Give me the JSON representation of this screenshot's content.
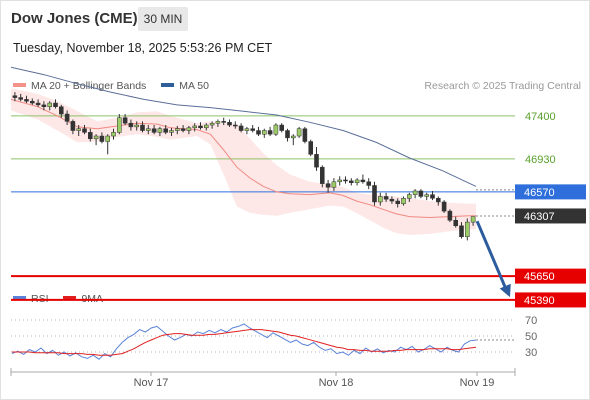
{
  "header": {
    "title": "Dow Jones (CME)",
    "timeframe": "30 MIN",
    "datetime": "Tuesday, November 18, 2025 5:53:26 PM CET",
    "credit": "Research © 2025 Trading Central"
  },
  "legend_main": [
    {
      "label": "MA 20 + Bollinger Bands",
      "color": "#f4928a"
    },
    {
      "label": "MA 50",
      "color": "#2f5f99"
    }
  ],
  "legend_rsi": [
    {
      "label": "RSI",
      "color": "#5a82d8"
    },
    {
      "label": "9MA",
      "color": "#e02020"
    }
  ],
  "chart_data": [
    {
      "type": "candlestick",
      "x_dates": [
        "Nov 17",
        "Nov 18",
        "Nov 19"
      ],
      "ylim": [
        45280,
        47770
      ],
      "levels": [
        {
          "value": 47400,
          "label": "47400",
          "style": "resistance",
          "color": "#8cc26a"
        },
        {
          "value": 46930,
          "label": "46930",
          "style": "resistance",
          "color": "#8cc26a"
        },
        {
          "value": 46570,
          "label": "46570",
          "style": "pivot",
          "color": "#2e6fdb"
        },
        {
          "value": 45650,
          "label": "45650",
          "style": "support",
          "color": "#e60000"
        },
        {
          "value": 45390,
          "label": "45390",
          "style": "support",
          "color": "#e60000"
        }
      ],
      "last_price": {
        "value": 46307,
        "label": "46307"
      },
      "ma50_points": [
        [
          0,
          47930
        ],
        [
          10,
          47850
        ],
        [
          20,
          47750
        ],
        [
          30,
          47660
        ],
        [
          40,
          47580
        ],
        [
          50,
          47520
        ],
        [
          60,
          47490
        ],
        [
          70,
          47450
        ],
        [
          80,
          47410
        ],
        [
          90,
          47330
        ],
        [
          100,
          47240
        ],
        [
          110,
          47110
        ],
        [
          120,
          46940
        ],
        [
          130,
          46800
        ],
        [
          140,
          46630
        ]
      ],
      "ma20_points": [
        [
          0,
          47580
        ],
        [
          8,
          47500
        ],
        [
          14,
          47400
        ],
        [
          20,
          47280
        ],
        [
          26,
          47260
        ],
        [
          32,
          47290
        ],
        [
          38,
          47320
        ],
        [
          44,
          47310
        ],
        [
          48,
          47270
        ],
        [
          52,
          47260
        ],
        [
          56,
          47250
        ],
        [
          60,
          47200
        ],
        [
          64,
          47030
        ],
        [
          68,
          46840
        ],
        [
          72,
          46720
        ],
        [
          76,
          46630
        ],
        [
          80,
          46570
        ],
        [
          84,
          46550
        ],
        [
          90,
          46540
        ],
        [
          96,
          46560
        ],
        [
          100,
          46530
        ],
        [
          104,
          46470
        ],
        [
          108,
          46430
        ],
        [
          112,
          46380
        ],
        [
          116,
          46330
        ],
        [
          120,
          46300
        ],
        [
          126,
          46290
        ],
        [
          132,
          46300
        ],
        [
          138,
          46310
        ],
        [
          140,
          46310
        ]
      ],
      "bb_upper": [
        [
          0,
          47700
        ],
        [
          8,
          47640
        ],
        [
          14,
          47560
        ],
        [
          20,
          47450
        ],
        [
          26,
          47340
        ],
        [
          32,
          47380
        ],
        [
          38,
          47440
        ],
        [
          44,
          47450
        ],
        [
          48,
          47400
        ],
        [
          52,
          47360
        ],
        [
          56,
          47320
        ],
        [
          60,
          47340
        ],
        [
          64,
          47330
        ],
        [
          68,
          47310
        ],
        [
          72,
          47150
        ],
        [
          76,
          46990
        ],
        [
          80,
          46860
        ],
        [
          84,
          46760
        ],
        [
          90,
          46680
        ],
        [
          96,
          46650
        ],
        [
          100,
          46620
        ],
        [
          104,
          46560
        ],
        [
          108,
          46540
        ],
        [
          112,
          46530
        ],
        [
          116,
          46520
        ],
        [
          120,
          46500
        ],
        [
          126,
          46470
        ],
        [
          132,
          46450
        ],
        [
          138,
          46440
        ],
        [
          140,
          46440
        ]
      ],
      "bb_lower": [
        [
          0,
          47460
        ],
        [
          8,
          47360
        ],
        [
          14,
          47240
        ],
        [
          20,
          47110
        ],
        [
          26,
          47120
        ],
        [
          32,
          47170
        ],
        [
          38,
          47200
        ],
        [
          44,
          47170
        ],
        [
          48,
          47140
        ],
        [
          52,
          47160
        ],
        [
          56,
          47180
        ],
        [
          60,
          47090
        ],
        [
          64,
          46760
        ],
        [
          68,
          46410
        ],
        [
          72,
          46340
        ],
        [
          76,
          46320
        ],
        [
          80,
          46310
        ],
        [
          84,
          46340
        ],
        [
          90,
          46380
        ],
        [
          96,
          46420
        ],
        [
          100,
          46410
        ],
        [
          104,
          46340
        ],
        [
          108,
          46260
        ],
        [
          112,
          46180
        ],
        [
          116,
          46120
        ],
        [
          120,
          46100
        ],
        [
          126,
          46110
        ],
        [
          132,
          46140
        ],
        [
          138,
          46160
        ],
        [
          140,
          46160
        ]
      ],
      "candles_ohlc": [
        [
          47620,
          47660,
          47560,
          47600
        ],
        [
          47600,
          47640,
          47560,
          47580
        ],
        [
          47580,
          47620,
          47540,
          47560
        ],
        [
          47560,
          47590,
          47520,
          47540
        ],
        [
          47540,
          47580,
          47500,
          47520
        ],
        [
          47520,
          47560,
          47460,
          47500
        ],
        [
          47500,
          47560,
          47460,
          47540
        ],
        [
          47540,
          47580,
          47480,
          47500
        ],
        [
          47500,
          47520,
          47380,
          47420
        ],
        [
          47420,
          47460,
          47300,
          47340
        ],
        [
          47340,
          47360,
          47200,
          47240
        ],
        [
          47240,
          47300,
          47180,
          47260
        ],
        [
          47260,
          47300,
          47200,
          47220
        ],
        [
          47220,
          47260,
          47120,
          47150
        ],
        [
          47150,
          47200,
          47080,
          47180
        ],
        [
          47180,
          47220,
          47100,
          47120
        ],
        [
          47120,
          47200,
          46980,
          47180
        ],
        [
          47180,
          47260,
          47140,
          47220
        ],
        [
          47220,
          47420,
          47200,
          47380
        ],
        [
          47380,
          47420,
          47300,
          47320
        ],
        [
          47320,
          47360,
          47240,
          47280
        ],
        [
          47280,
          47340,
          47240,
          47300
        ],
        [
          47300,
          47340,
          47220,
          47240
        ],
        [
          47240,
          47300,
          47200,
          47260
        ],
        [
          47260,
          47300,
          47200,
          47220
        ],
        [
          47220,
          47280,
          47180,
          47260
        ],
        [
          47260,
          47300,
          47200,
          47220
        ],
        [
          47220,
          47270,
          47180,
          47240
        ],
        [
          47240,
          47290,
          47200,
          47260
        ],
        [
          47260,
          47300,
          47220,
          47240
        ],
        [
          47240,
          47290,
          47200,
          47270
        ],
        [
          47270,
          47320,
          47230,
          47290
        ],
        [
          47290,
          47330,
          47250,
          47270
        ],
        [
          47270,
          47320,
          47240,
          47300
        ],
        [
          47300,
          47340,
          47260,
          47320
        ],
        [
          47320,
          47360,
          47280,
          47340
        ],
        [
          47340,
          47380,
          47300,
          47330
        ],
        [
          47330,
          47360,
          47280,
          47300
        ],
        [
          47300,
          47340,
          47260,
          47290
        ],
        [
          47290,
          47320,
          47220,
          47240
        ],
        [
          47240,
          47280,
          47200,
          47260
        ],
        [
          47260,
          47300,
          47220,
          47240
        ],
        [
          47240,
          47280,
          47180,
          47200
        ],
        [
          47200,
          47260,
          47160,
          47240
        ],
        [
          47240,
          47280,
          47180,
          47200
        ],
        [
          47200,
          47320,
          47180,
          47300
        ],
        [
          47300,
          47320,
          47220,
          47240
        ],
        [
          47240,
          47260,
          47120,
          47160
        ],
        [
          47160,
          47200,
          47080,
          47180
        ],
        [
          47180,
          47280,
          47160,
          47260
        ],
        [
          47260,
          47280,
          47100,
          47120
        ],
        [
          47120,
          47140,
          46960,
          46980
        ],
        [
          46980,
          47060,
          46800,
          46840
        ],
        [
          46840,
          46860,
          46620,
          46660
        ],
        [
          46660,
          46700,
          46560,
          46620
        ],
        [
          46620,
          46720,
          46580,
          46680
        ],
        [
          46680,
          46740,
          46640,
          46700
        ],
        [
          46700,
          46740,
          46660,
          46690
        ],
        [
          46690,
          46720,
          46640,
          46670
        ],
        [
          46670,
          46720,
          46640,
          46700
        ],
        [
          46700,
          46760,
          46660,
          46680
        ],
        [
          46680,
          46720,
          46600,
          46640
        ],
        [
          46640,
          46680,
          46420,
          46460
        ],
        [
          46460,
          46560,
          46420,
          46520
        ],
        [
          46520,
          46560,
          46460,
          46490
        ],
        [
          46490,
          46520,
          46440,
          46470
        ],
        [
          46470,
          46500,
          46400,
          46440
        ],
        [
          46440,
          46520,
          46420,
          46500
        ],
        [
          46500,
          46560,
          46460,
          46540
        ],
        [
          46540,
          46600,
          46500,
          46580
        ],
        [
          46580,
          46600,
          46500,
          46520
        ],
        [
          46520,
          46560,
          46480,
          46540
        ],
        [
          46540,
          46580,
          46480,
          46500
        ],
        [
          46500,
          46520,
          46420,
          46460
        ],
        [
          46460,
          46480,
          46340,
          46360
        ],
        [
          46360,
          46380,
          46240,
          46260
        ],
        [
          46260,
          46300,
          46180,
          46200
        ],
        [
          46200,
          46240,
          46060,
          46080
        ],
        [
          46080,
          46280,
          46040,
          46240
        ],
        [
          46240,
          46300,
          46200,
          46300
        ]
      ],
      "forecast_arrow": {
        "from_value": 46250,
        "to_value": 45420
      }
    },
    {
      "type": "line",
      "title": "RSI",
      "y_ticks": [
        70,
        50,
        30
      ],
      "ylim": [
        5,
        85
      ],
      "series": [
        {
          "name": "RSI",
          "values": [
            28,
            31,
            27,
            33,
            30,
            35,
            28,
            32,
            26,
            30,
            25,
            29,
            24,
            22,
            26,
            21,
            28,
            24,
            34,
            42,
            48,
            52,
            58,
            55,
            60,
            62,
            56,
            50,
            45,
            48,
            52,
            50,
            55,
            53,
            57,
            54,
            58,
            55,
            60,
            62,
            65,
            60,
            56,
            52,
            48,
            54,
            50,
            46,
            42,
            45,
            40,
            38,
            42,
            36,
            32,
            34,
            28,
            30,
            26,
            32,
            28,
            35,
            30,
            34,
            29,
            32,
            30,
            36,
            33,
            37,
            30,
            33,
            38,
            34,
            30,
            36,
            32,
            30,
            40,
            44,
            45
          ]
        },
        {
          "name": "9MA",
          "values": [
            30,
            30,
            30,
            30,
            29,
            29,
            29,
            29,
            29,
            28,
            28,
            28,
            28,
            27,
            27,
            26,
            26,
            26,
            27,
            28,
            31,
            34,
            38,
            42,
            45,
            48,
            51,
            52,
            53,
            53,
            52,
            51,
            51,
            51,
            52,
            52,
            53,
            54,
            55,
            56,
            57,
            58,
            58,
            58,
            57,
            56,
            55,
            53,
            51,
            50,
            48,
            46,
            44,
            42,
            40,
            38,
            36,
            35,
            33,
            33,
            32,
            32,
            31,
            31,
            31,
            31,
            32,
            32,
            33,
            33,
            33,
            33,
            34,
            34,
            34,
            34,
            33,
            33,
            34,
            35,
            36
          ]
        }
      ]
    }
  ]
}
